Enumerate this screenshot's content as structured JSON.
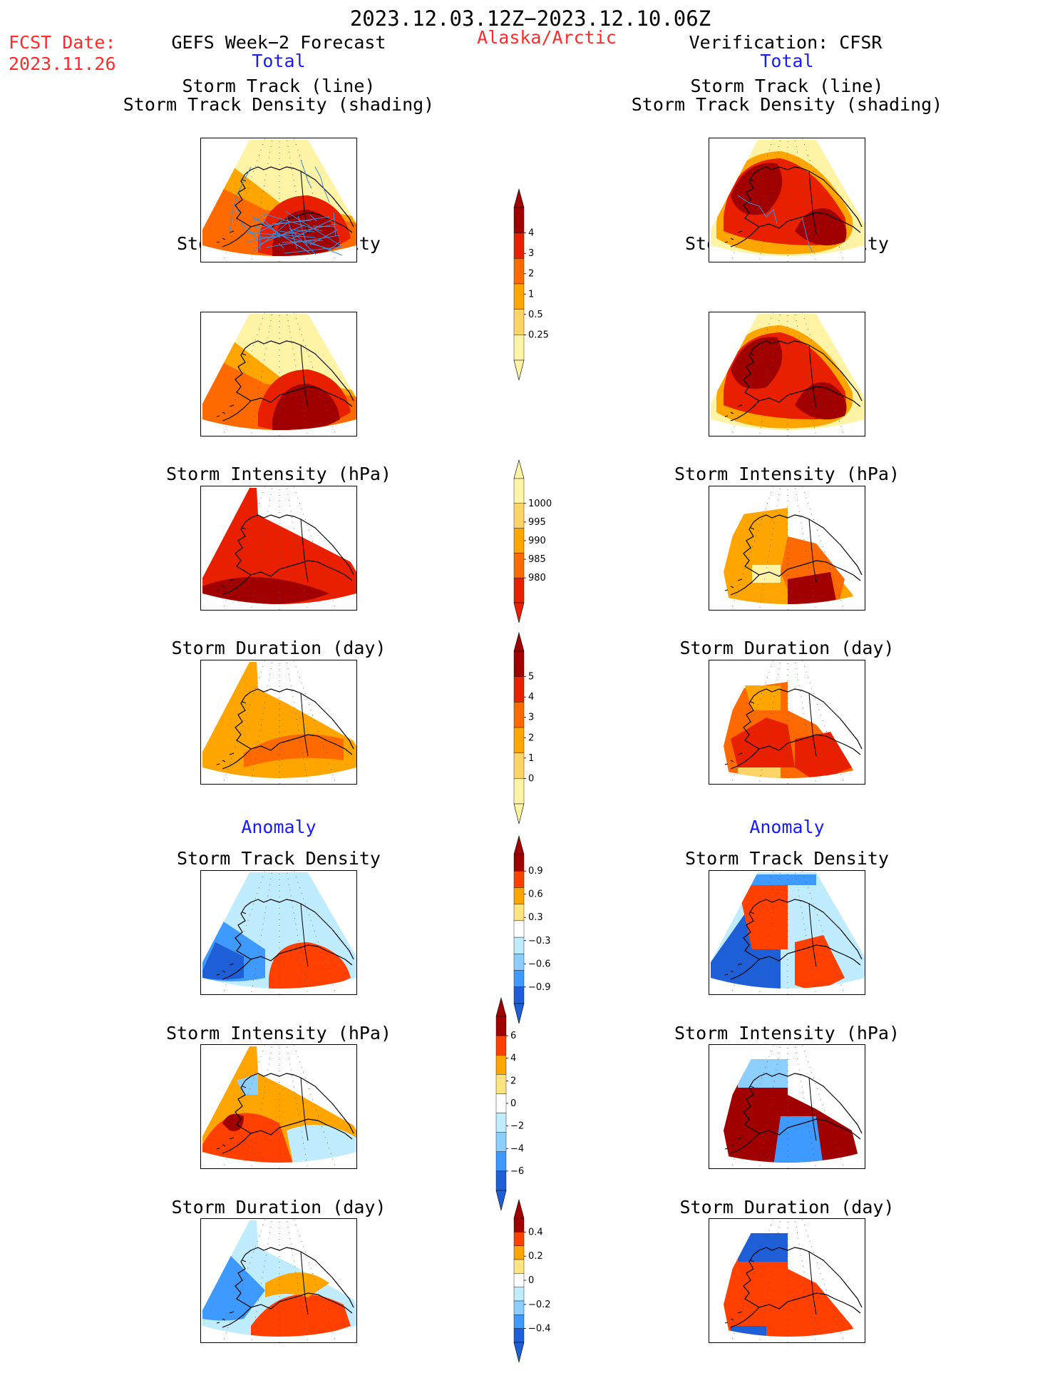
{
  "header": {
    "period": "2023.12.03.12Z−2023.12.10.06Z",
    "region": "Alaska/Arctic",
    "fcst_label": "FCST Date:",
    "fcst_date": "2023.11.26",
    "left_title": "GEFS Week−2 Forecast",
    "right_title": "Verification: CFSR",
    "total_label": "Total",
    "anomaly_label": "Anomaly"
  },
  "panel_titles": {
    "track_line": "Storm Track (line)",
    "track_shading": "Storm Track Density (shading)",
    "density": "Storm Track Density",
    "intensity": "Storm Intensity (hPa)",
    "duration": "Storm Duration (day)"
  },
  "colorbars": {
    "density": [
      "4",
      "3",
      "2",
      "1",
      "0.5",
      "0.25"
    ],
    "intensity": [
      "1000",
      "995",
      "990",
      "985",
      "980"
    ],
    "duration": [
      "5",
      "4",
      "3",
      "2",
      "1",
      "0"
    ],
    "density_anom": [
      "0.9",
      "0.6",
      "0.3",
      "−0.3",
      "−0.6",
      "−0.9"
    ],
    "intensity_anom": [
      "6",
      "4",
      "2",
      "0",
      "−2",
      "−4",
      "−6"
    ],
    "duration_anom": [
      "0.4",
      "0.2",
      "0",
      "−0.2",
      "−0.4"
    ]
  },
  "colors": {
    "seq": [
      "#fff3a6",
      "#ffd466",
      "#ffa500",
      "#ff6a00",
      "#e82000",
      "#a00000"
    ],
    "div_pos": [
      "#ffe480",
      "#ffa500",
      "#ff4000",
      "#a00000"
    ],
    "div_neg": [
      "#c0ecff",
      "#8ccfff",
      "#3f9aff",
      "#1e5fd8"
    ],
    "title_red": "#ff2a2a",
    "title_blue": "#1a1aff",
    "track_line": "#3a8fe0"
  },
  "icons": {
    "map": "alaska-arctic-map-icon",
    "colorbar": "colorbar-icon"
  }
}
